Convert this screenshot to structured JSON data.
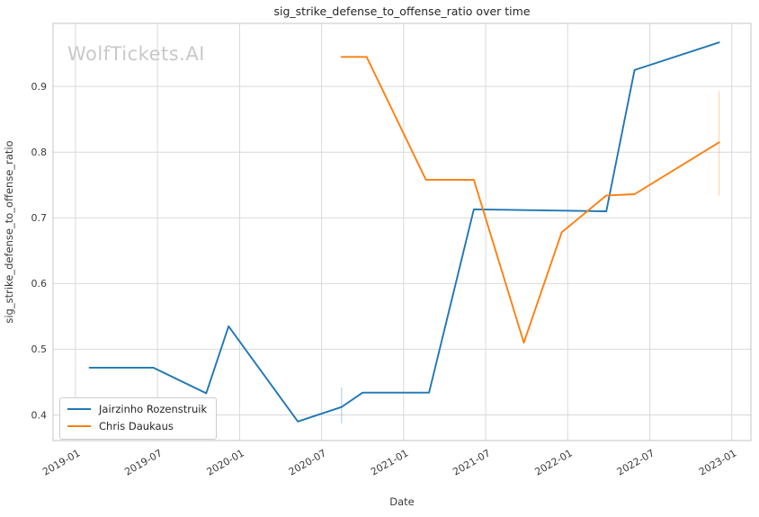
{
  "watermark": {
    "text": "WolfTickets.AI",
    "color": "#c9c9c9"
  },
  "chart_data": {
    "type": "line",
    "title": "sig_strike_defense_to_offense_ratio over time",
    "xlabel": "Date",
    "ylabel": "sig_strike_defense_to_offense_ratio",
    "x_tick_labels": [
      "2019-01",
      "2019-07",
      "2020-01",
      "2020-07",
      "2021-01",
      "2021-07",
      "2022-01",
      "2022-07",
      "2023-01"
    ],
    "y_ticks": [
      0.4,
      0.5,
      0.6,
      0.7,
      0.8,
      0.9
    ],
    "y_tick_labels": [
      "0.4",
      "0.5",
      "0.6",
      "0.7",
      "0.8",
      "0.9"
    ],
    "xlim": [
      "2018-11-12",
      "2023-02-13"
    ],
    "ylim": [
      0.361,
      0.996
    ],
    "grid": true,
    "legend_position": "lower left",
    "series": [
      {
        "name": "Jairzinho Rozenstruik",
        "color": "#1f77b4",
        "points": [
          [
            "2019-02-02",
            0.472
          ],
          [
            "2019-06-22",
            0.472
          ],
          [
            "2019-10-18",
            0.433
          ],
          [
            "2019-12-07",
            0.535
          ],
          [
            "2020-05-09",
            0.39
          ],
          [
            "2020-08-15",
            0.412
          ],
          [
            "2020-10-01",
            0.434
          ],
          [
            "2021-02-27",
            0.434
          ],
          [
            "2021-06-05",
            0.713
          ],
          [
            "2022-03-26",
            0.71
          ],
          [
            "2022-05-28",
            0.925
          ],
          [
            "2022-12-03",
            0.967
          ]
        ]
      },
      {
        "name": "Chris Daukaus",
        "color": "#ff7f0e",
        "points": [
          [
            "2020-08-15",
            0.945
          ],
          [
            "2020-10-10",
            0.945
          ],
          [
            "2021-02-20",
            0.758
          ],
          [
            "2021-06-05",
            0.758
          ],
          [
            "2021-09-25",
            0.51
          ],
          [
            "2021-12-18",
            0.678
          ],
          [
            "2022-03-26",
            0.734
          ],
          [
            "2022-05-28",
            0.736
          ],
          [
            "2022-12-03",
            0.815
          ]
        ]
      }
    ],
    "error_bars": [
      {
        "series": "Jairzinho Rozenstruik",
        "color": "#1f77b4",
        "date": "2020-08-15",
        "y_from": 0.387,
        "y_to": 0.442,
        "opacity": 0.32
      },
      {
        "series": "Chris Daukaus",
        "color": "#ff7f0e",
        "date": "2022-12-03",
        "y_from": 0.733,
        "y_to": 0.893,
        "opacity": 0.3
      }
    ]
  }
}
